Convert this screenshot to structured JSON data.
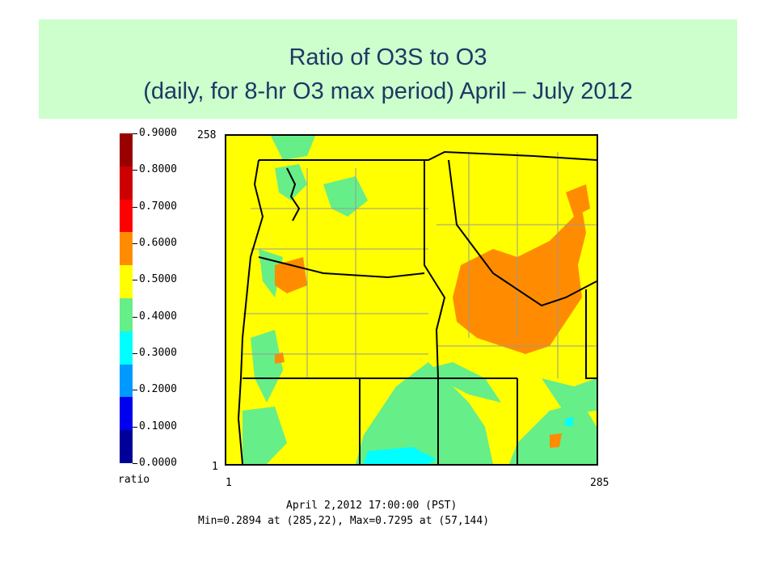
{
  "title": {
    "line1": "Ratio of O3S to O3",
    "line2": "(daily, for 8-hr O3 max period) April – July 2012"
  },
  "colorbar": {
    "unit_label": "ratio",
    "ticks": [
      "0.9000",
      "0.8000",
      "0.7000",
      "0.6000",
      "0.5000",
      "0.4000",
      "0.3000",
      "0.2000",
      "0.1000",
      "0.0000"
    ],
    "colors": [
      "#990000",
      "#cc0000",
      "#ff0000",
      "#ff8c00",
      "#ffff00",
      "#66ee88",
      "#00ffff",
      "#0099ff",
      "#0000ee",
      "#000099"
    ]
  },
  "axes": {
    "y_top": "258",
    "y_bottom": "1",
    "x_left": "1",
    "x_right": "285"
  },
  "footer": {
    "timestamp": "April 2,2012 17:00:00 (PST)",
    "minmax": "Min=0.2894 at (285,22), Max=0.7295 at (57,144)"
  },
  "map_colors": {
    "yellow": "#ffff00",
    "green": "#66ee88",
    "orange": "#ff8c00",
    "cyan": "#00ffff",
    "border": "#000000",
    "county": "#999999"
  }
}
